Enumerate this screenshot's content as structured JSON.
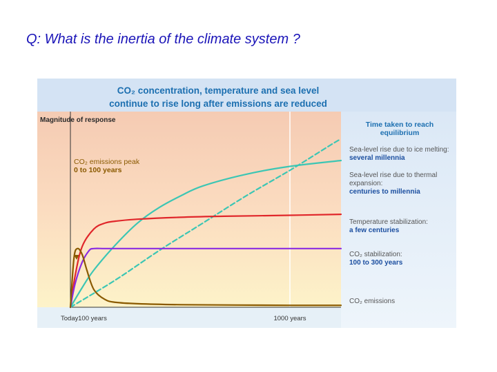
{
  "question": "Q:  What is the inertia of the climate system ?",
  "chart_data": {
    "type": "line",
    "title_line1": "CO₂ concentration, temperature and sea level",
    "title_line2": "continue to rise long after emissions are reduced",
    "ylabel": "Magnitude of response",
    "right_header": [
      "Time taken to reach",
      "equilibrium"
    ],
    "x_ticks": [
      {
        "x": 0,
        "label": "Today"
      },
      {
        "x": 100,
        "label": "100 years"
      },
      {
        "x": 1000,
        "label": "1000 years"
      }
    ],
    "x_range": [
      0,
      1250
    ],
    "y_range": [
      0,
      100
    ],
    "grid_x": 1000,
    "annotation": {
      "lines": [
        "CO₂ emissions peak",
        "0 to 100 years"
      ],
      "color": "#8a5a00"
    },
    "series": [
      {
        "name": "Sea-level rise due to ice melting:",
        "detail": "several millennia",
        "color": "#3cc6b4",
        "dash": true,
        "x": [
          0,
          200,
          400,
          600,
          800,
          1000,
          1200,
          1250
        ],
        "y": [
          0,
          14,
          29,
          43,
          57,
          70,
          83,
          86
        ]
      },
      {
        "name": "Sea-level rise due to thermal expansion:",
        "detail": "centuries to millennia",
        "color": "#3cc6b4",
        "dash": false,
        "x": [
          0,
          50,
          100,
          200,
          300,
          400,
          500,
          600,
          800,
          1000,
          1250
        ],
        "y": [
          0,
          10,
          19,
          32,
          43,
          51,
          57,
          62,
          68,
          72,
          75
        ]
      },
      {
        "name": "Temperature stabilization:",
        "detail": "a few centuries",
        "color": "#e0262a",
        "dash": false,
        "x": [
          0,
          20,
          50,
          100,
          150,
          200,
          300,
          500,
          700,
          1000,
          1250
        ],
        "y": [
          0,
          16,
          31,
          40,
          43,
          44,
          45,
          46,
          46.5,
          47,
          47.5
        ]
      },
      {
        "name": "CO₂ stabilization:",
        "detail": "100 to 300 years",
        "color": "#8a2be2",
        "dash": false,
        "x": [
          0,
          20,
          50,
          80,
          100,
          150,
          250,
          500,
          1000,
          1250
        ],
        "y": [
          0,
          12,
          23,
          29,
          30,
          30,
          30,
          30,
          30,
          30
        ]
      },
      {
        "name": "CO₂ emissions",
        "detail": "",
        "color": "#8a5a00",
        "dash": false,
        "x": [
          0,
          15,
          30,
          50,
          70,
          100,
          150,
          200,
          300,
          500,
          1000,
          1250
        ],
        "y": [
          0,
          25,
          30,
          27,
          19,
          9,
          4,
          2.5,
          1.8,
          1.3,
          1,
          1
        ]
      }
    ]
  }
}
